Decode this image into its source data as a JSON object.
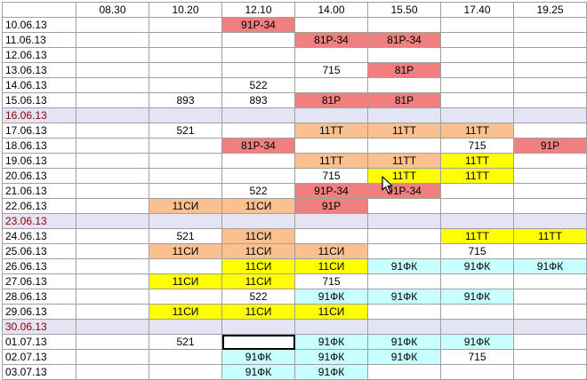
{
  "sheet": {
    "headers": [
      "",
      "08.30",
      "10.20",
      "12.10",
      "14.00",
      "15.50",
      "17.40",
      "19.25"
    ],
    "colors": {
      "red": "#f08080",
      "orange": "#fac090",
      "yellow": "#ffff00",
      "cyan": "#c8ffff",
      "weekend_band": "#e4e4f4",
      "weekend_text": "#8b0000"
    },
    "rows": [
      {
        "date": "10.06.13",
        "cells": [
          [
            "",
            ""
          ],
          [
            "",
            ""
          ],
          [
            "91Р-34",
            "red"
          ],
          [
            "",
            ""
          ],
          [
            "",
            ""
          ],
          [
            "",
            ""
          ],
          [
            "",
            ""
          ]
        ]
      },
      {
        "date": "11.06.13",
        "cells": [
          [
            "",
            ""
          ],
          [
            "",
            ""
          ],
          [
            "",
            ""
          ],
          [
            "81Р-34",
            "red"
          ],
          [
            "81Р-34",
            "red"
          ],
          [
            "",
            ""
          ],
          [
            "",
            ""
          ]
        ]
      },
      {
        "date": "12.06.13",
        "cells": [
          [
            "",
            ""
          ],
          [
            "",
            ""
          ],
          [
            "",
            ""
          ],
          [
            "",
            ""
          ],
          [
            "",
            ""
          ],
          [
            "",
            ""
          ],
          [
            "",
            ""
          ]
        ]
      },
      {
        "date": "13.06.13",
        "cells": [
          [
            "",
            ""
          ],
          [
            "",
            ""
          ],
          [
            "",
            ""
          ],
          [
            "715",
            ""
          ],
          [
            "81Р",
            "red"
          ],
          [
            "",
            ""
          ],
          [
            "",
            ""
          ]
        ]
      },
      {
        "date": "14.06.13",
        "cells": [
          [
            "",
            ""
          ],
          [
            "",
            ""
          ],
          [
            "522",
            ""
          ],
          [
            "",
            ""
          ],
          [
            "",
            ""
          ],
          [
            "",
            ""
          ],
          [
            "",
            ""
          ]
        ]
      },
      {
        "date": "15.06.13",
        "cells": [
          [
            "",
            ""
          ],
          [
            "893",
            ""
          ],
          [
            "893",
            ""
          ],
          [
            "81Р",
            "red"
          ],
          [
            "81Р",
            "red"
          ],
          [
            "",
            ""
          ],
          [
            "",
            ""
          ]
        ]
      },
      {
        "date": "16.06.13",
        "weekend": true,
        "cells": [
          [
            "",
            ""
          ],
          [
            "",
            ""
          ],
          [
            "",
            ""
          ],
          [
            "",
            ""
          ],
          [
            "",
            ""
          ],
          [
            "",
            ""
          ],
          [
            "",
            ""
          ]
        ]
      },
      {
        "date": "17.06.13",
        "cells": [
          [
            "",
            ""
          ],
          [
            "521",
            ""
          ],
          [
            "",
            ""
          ],
          [
            "11ТТ",
            "orange"
          ],
          [
            "11ТТ",
            "orange"
          ],
          [
            "11ТТ",
            "orange"
          ],
          [
            "",
            ""
          ]
        ]
      },
      {
        "date": "18.06.13",
        "cells": [
          [
            "",
            ""
          ],
          [
            "",
            ""
          ],
          [
            "81Р-34",
            "red"
          ],
          [
            "",
            ""
          ],
          [
            "",
            ""
          ],
          [
            "715",
            ""
          ],
          [
            "91Р",
            "red"
          ]
        ]
      },
      {
        "date": "19.06.13",
        "cells": [
          [
            "",
            ""
          ],
          [
            "",
            ""
          ],
          [
            "",
            ""
          ],
          [
            "11ТТ",
            "orange"
          ],
          [
            "11ТТ",
            "orange"
          ],
          [
            "11ТТ",
            "yellow"
          ],
          [
            "",
            ""
          ]
        ]
      },
      {
        "date": "20.06.13",
        "cells": [
          [
            "",
            ""
          ],
          [
            "",
            ""
          ],
          [
            "",
            ""
          ],
          [
            "715",
            ""
          ],
          [
            "11ТТ",
            "yellow"
          ],
          [
            "11ТТ",
            "yellow"
          ],
          [
            "",
            ""
          ]
        ]
      },
      {
        "date": "21.06.13",
        "cells": [
          [
            "",
            ""
          ],
          [
            "",
            ""
          ],
          [
            "522",
            ""
          ],
          [
            "91Р-34",
            "red"
          ],
          [
            "91Р-34",
            "red"
          ],
          [
            "",
            ""
          ],
          [
            "",
            ""
          ]
        ]
      },
      {
        "date": "22.06.13",
        "cells": [
          [
            "",
            ""
          ],
          [
            "11СИ",
            "orange"
          ],
          [
            "11СИ",
            "orange"
          ],
          [
            "91Р",
            "red"
          ],
          [
            "",
            ""
          ],
          [
            "",
            ""
          ],
          [
            "",
            ""
          ]
        ]
      },
      {
        "date": "23.06.13",
        "weekend": true,
        "cells": [
          [
            "",
            ""
          ],
          [
            "",
            ""
          ],
          [
            "",
            ""
          ],
          [
            "",
            ""
          ],
          [
            "",
            ""
          ],
          [
            "",
            ""
          ],
          [
            "",
            ""
          ]
        ]
      },
      {
        "date": "24.06.13",
        "cells": [
          [
            "",
            ""
          ],
          [
            "521",
            ""
          ],
          [
            "11СИ",
            "orange"
          ],
          [
            "",
            ""
          ],
          [
            "",
            ""
          ],
          [
            "11ТТ",
            "yellow"
          ],
          [
            "11ТТ",
            "yellow"
          ]
        ]
      },
      {
        "date": "25.06.13",
        "cells": [
          [
            "",
            ""
          ],
          [
            "11СИ",
            "orange"
          ],
          [
            "11СИ",
            "orange"
          ],
          [
            "11СИ",
            "orange"
          ],
          [
            "",
            ""
          ],
          [
            "715",
            ""
          ],
          [
            "",
            ""
          ]
        ]
      },
      {
        "date": "26.06.13",
        "cells": [
          [
            "",
            ""
          ],
          [
            "",
            ""
          ],
          [
            "11СИ",
            "yellow"
          ],
          [
            "11СИ",
            "yellow"
          ],
          [
            "91ФК",
            "cyan"
          ],
          [
            "91ФК",
            "cyan"
          ],
          [
            "91ФК",
            "cyan"
          ]
        ]
      },
      {
        "date": "27.06.13",
        "cells": [
          [
            "",
            ""
          ],
          [
            "11СИ",
            "yellow"
          ],
          [
            "11СИ",
            "yellow"
          ],
          [
            "715",
            ""
          ],
          [
            "",
            ""
          ],
          [
            "",
            ""
          ],
          [
            "",
            ""
          ]
        ]
      },
      {
        "date": "28.06.13",
        "cells": [
          [
            "",
            ""
          ],
          [
            "",
            ""
          ],
          [
            "522",
            ""
          ],
          [
            "91ФК",
            "cyan"
          ],
          [
            "91ФК",
            "cyan"
          ],
          [
            "91ФК",
            "cyan"
          ],
          [
            "",
            ""
          ]
        ]
      },
      {
        "date": "29.06.13",
        "cells": [
          [
            "",
            ""
          ],
          [
            "11СИ",
            "yellow"
          ],
          [
            "11СИ",
            "yellow"
          ],
          [
            "11СИ",
            "yellow"
          ],
          [
            "",
            ""
          ],
          [
            "",
            ""
          ],
          [
            "",
            ""
          ]
        ]
      },
      {
        "date": "30.06.13",
        "weekend": true,
        "cells": [
          [
            "",
            ""
          ],
          [
            "",
            ""
          ],
          [
            "",
            ""
          ],
          [
            "",
            ""
          ],
          [
            "",
            ""
          ],
          [
            "",
            ""
          ],
          [
            "",
            ""
          ]
        ]
      },
      {
        "date": "01.07.13",
        "cells": [
          [
            "",
            ""
          ],
          [
            "521",
            ""
          ],
          [
            "",
            "selected"
          ],
          [
            "91ФК",
            "cyan"
          ],
          [
            "91ФК",
            "cyan"
          ],
          [
            "91ФК",
            "cyan"
          ],
          [
            "",
            ""
          ]
        ]
      },
      {
        "date": "02.07.13",
        "cells": [
          [
            "",
            ""
          ],
          [
            "",
            ""
          ],
          [
            "91ФК",
            "cyan"
          ],
          [
            "91ФК",
            "cyan"
          ],
          [
            "91ФК",
            "cyan"
          ],
          [
            "715",
            ""
          ],
          [
            "",
            ""
          ]
        ]
      },
      {
        "date": "03.07.13",
        "cells": [
          [
            "",
            ""
          ],
          [
            "",
            ""
          ],
          [
            "91ФК",
            "cyan"
          ],
          [
            "91ФК",
            "cyan"
          ],
          [
            "",
            ""
          ],
          [
            "",
            ""
          ],
          [
            "",
            ""
          ]
        ]
      }
    ]
  },
  "cursor": {
    "icon": "arrow-pointer-icon"
  }
}
